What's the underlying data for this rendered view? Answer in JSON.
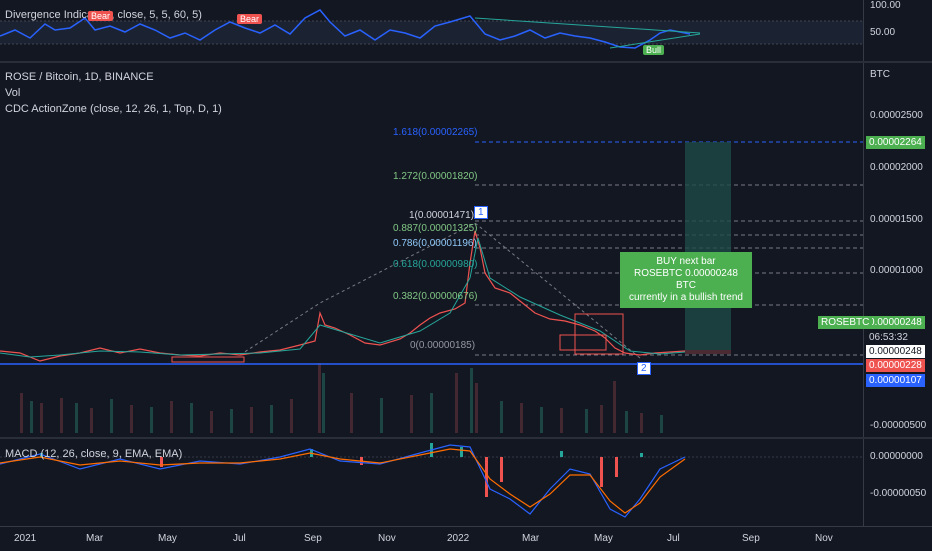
{
  "osc": {
    "title": "Divergence Indicat  14, close, 5, 5, 60, 5)",
    "bear1": "Bear",
    "bear2": "Bear",
    "bull": "Bull",
    "axis": [
      "100.00",
      "50.00"
    ]
  },
  "main": {
    "symbol_line": "ROSE / Bitcoin, 1D, BINANCE",
    "vol_line": "Vol",
    "cdc_line": "CDC ActionZone  (close, 12, 26, 1, Top, D, 1)",
    "currency": "BTC",
    "axis": [
      "0.00002500",
      "0.00002000",
      "0.00001500",
      "0.00001000",
      "-0.00000500"
    ],
    "price_tags": {
      "target": "0.00002264",
      "symbol": "ROSEBTC",
      "last": "0.00000248",
      "countdown": "06:53:32",
      "last2": "0.00000248",
      "red": "0.00000228",
      "blue": "0.00000107"
    },
    "fib": [
      "1.618(0.00002265)",
      "1.272(0.00001820)",
      "1(0.00001471)",
      "0.887(0.00001325)",
      "0.786(0.00001196)",
      "0.618(0.00000980)",
      "0.382(0.00000676)",
      "0(0.00000185)"
    ],
    "callout": [
      "BUY next bar",
      "ROSEBTC 0.00000248 BTC",
      "currently in a bullish trend"
    ],
    "markers": [
      "1",
      "2"
    ]
  },
  "macd": {
    "title": "MACD (12, 26, close, 9, EMA, EMA)",
    "axis": [
      "0.00000000",
      "-0.00000050"
    ]
  },
  "xaxis": [
    "2021",
    "Mar",
    "May",
    "Jul",
    "Sep",
    "Nov",
    "2022",
    "Mar",
    "May",
    "Jul",
    "Sep",
    "Nov"
  ],
  "colors": {
    "bg": "#131722",
    "up": "#26a69a",
    "down": "#ef5350",
    "blue": "#2962ff",
    "green": "#4caf50"
  }
}
